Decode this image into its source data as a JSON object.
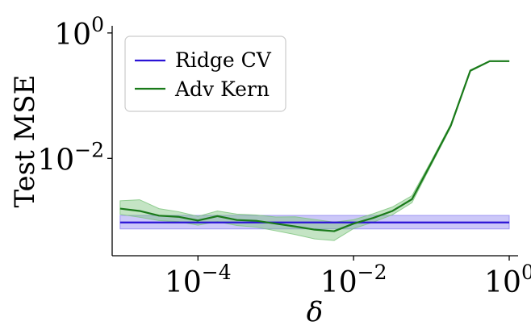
{
  "chart_data": {
    "type": "line",
    "title": "",
    "xlabel": "δ",
    "ylabel": "Test MSE",
    "xscale": "log",
    "yscale": "log",
    "xlim": [
      7.9e-06,
      1.3
    ],
    "ylim": [
      0.00028,
      1.3
    ],
    "grid": false,
    "legend_position": "top-left",
    "x_ticks": [
      {
        "value": 0.0001,
        "base": "10",
        "exp": "−4"
      },
      {
        "value": 0.01,
        "base": "10",
        "exp": "−2"
      },
      {
        "value": 1,
        "base": "10",
        "exp": "0"
      }
    ],
    "y_ticks": [
      {
        "value": 0.01,
        "base": "10",
        "exp": "−2"
      },
      {
        "value": 1,
        "base": "10",
        "exp": "0"
      }
    ],
    "series": [
      {
        "name": "Ridge CV",
        "color": "#2a13d6",
        "band_color": "#8f86f0",
        "x": [
          1e-05,
          1
        ],
        "y": [
          0.00095,
          0.00095
        ],
        "lower": [
          0.00075,
          0.00075
        ],
        "upper": [
          0.00123,
          0.00123
        ]
      },
      {
        "name": "Adv Kern",
        "color": "#1a7a1a",
        "band_color": "#7cc47c",
        "x": [
          1e-05,
          1.78e-05,
          3.16e-05,
          5.62e-05,
          0.0001,
          0.000178,
          0.000316,
          0.000562,
          0.001,
          0.00178,
          0.00316,
          0.00562,
          0.01,
          0.0178,
          0.0316,
          0.0562,
          0.1,
          0.178,
          0.316,
          0.562,
          1
        ],
        "y": [
          0.00158,
          0.00145,
          0.00122,
          0.00117,
          0.00102,
          0.0012,
          0.00104,
          0.00101,
          0.00091,
          0.00082,
          0.00073,
          0.00069,
          0.00091,
          0.00112,
          0.00145,
          0.00223,
          0.0085,
          0.0336,
          0.25,
          0.355,
          0.355
        ],
        "lower": [
          0.00128,
          0.00115,
          0.00102,
          0.00098,
          0.00086,
          0.00098,
          0.00085,
          0.0008,
          0.0007,
          0.00061,
          0.00052,
          0.00049,
          0.00076,
          0.00096,
          0.00126,
          0.00196,
          0.0079,
          0.0316,
          0.243,
          0.35,
          0.35
        ],
        "upper": [
          0.00211,
          0.00219,
          0.00158,
          0.00141,
          0.00119,
          0.00145,
          0.00129,
          0.00125,
          0.00116,
          0.00117,
          0.00106,
          0.00096,
          0.00105,
          0.00131,
          0.00168,
          0.00254,
          0.0092,
          0.0355,
          0.258,
          0.36,
          0.36
        ]
      }
    ]
  }
}
